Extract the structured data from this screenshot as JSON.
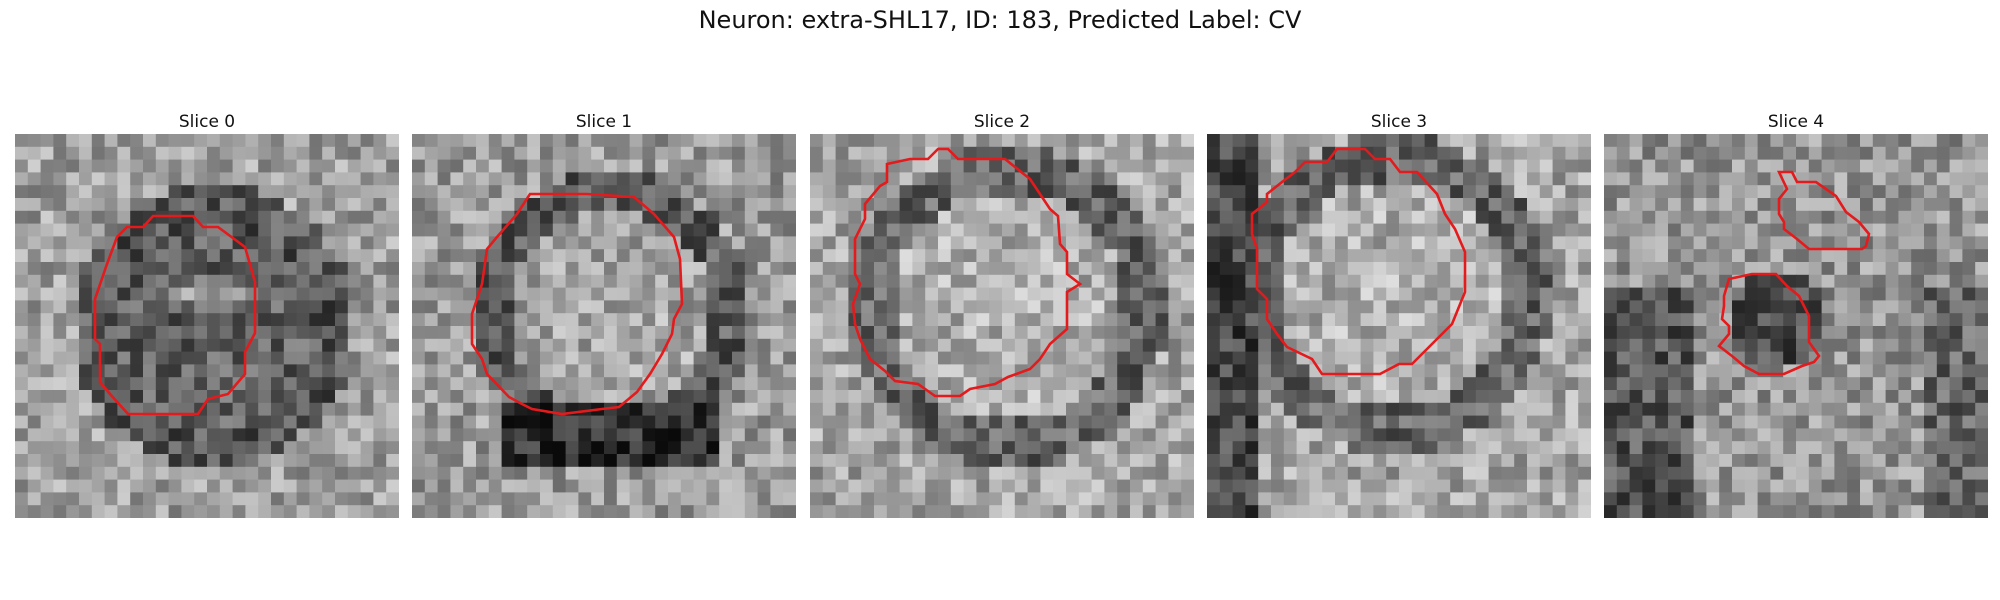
{
  "figure": {
    "title": "Neuron: extra-SHL17, ID: 183, Predicted Label: CV"
  },
  "colors": {
    "contour": "#e41a1c",
    "background": "#ffffff"
  },
  "panels": [
    {
      "title": "Slice 0",
      "ring": "dark-blob",
      "seed": 11
    },
    {
      "title": "Slice 1",
      "ring": "dark-bottom-ring",
      "seed": 23
    },
    {
      "title": "Slice 2",
      "ring": "dark-ring",
      "seed": 37
    },
    {
      "title": "Slice 3",
      "ring": "dark-ring",
      "seed": 51
    },
    {
      "title": "Slice 4",
      "ring": "small-dark-blob",
      "seed": 67
    }
  ]
}
